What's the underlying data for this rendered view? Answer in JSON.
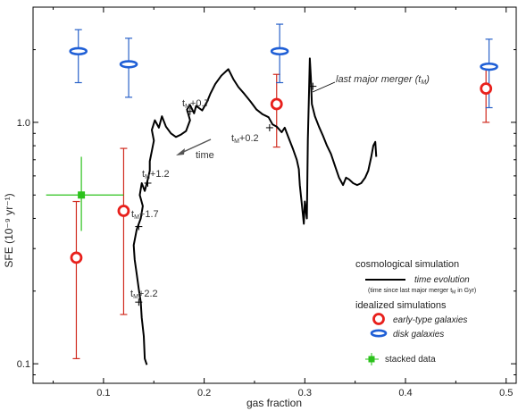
{
  "chart_data": {
    "type": "scatter",
    "xlabel": "gas fraction",
    "ylabel": "SFE (10⁻⁹ yr⁻¹)",
    "xlim": [
      0.03,
      0.51
    ],
    "ylim": [
      0.083,
      3.0
    ],
    "yscale": "log",
    "xticks": [
      0.1,
      0.2,
      0.3,
      0.4,
      0.5
    ],
    "xtick_labels": [
      "0.1",
      "0.2",
      "0.3",
      "0.4",
      "0.5"
    ],
    "yticks": [
      0.1,
      1.0
    ],
    "ytick_labels": [
      "0.1",
      "1.0"
    ],
    "colors": {
      "early": "#e8201c",
      "disk": "#1f5fd6",
      "stacked": "#2bc21b",
      "line": "#000000",
      "errbar_early": "#d02a1e",
      "errbar_disk": "#2a62c9"
    },
    "series": [
      {
        "name": "early-type galaxies",
        "marker": "circle",
        "points": [
          {
            "x": 0.073,
            "y": 0.275,
            "ylo": 0.105,
            "yhi": 0.47
          },
          {
            "x": 0.12,
            "y": 0.43,
            "ylo": 0.16,
            "yhi": 0.78
          },
          {
            "x": 0.272,
            "y": 1.19,
            "ylo": 0.79,
            "yhi": 1.58
          },
          {
            "x": 0.48,
            "y": 1.38,
            "ylo": 1.0,
            "yhi": 1.67
          }
        ]
      },
      {
        "name": "disk galaxies",
        "marker": "ellipse",
        "points": [
          {
            "x": 0.075,
            "y": 1.97,
            "ylo": 1.46,
            "yhi": 2.42
          },
          {
            "x": 0.125,
            "y": 1.74,
            "ylo": 1.27,
            "yhi": 2.23
          },
          {
            "x": 0.275,
            "y": 1.97,
            "ylo": 1.46,
            "yhi": 2.55
          },
          {
            "x": 0.483,
            "y": 1.7,
            "ylo": 1.15,
            "yhi": 2.21
          }
        ]
      },
      {
        "name": "stacked data",
        "marker": "square",
        "points": [
          {
            "x": 0.078,
            "y": 0.5,
            "xlo": 0.043,
            "xhi": 0.12,
            "ylo": 0.355,
            "yhi": 0.72
          }
        ]
      }
    ],
    "time_evolution": {
      "name": "time evolution",
      "points": [
        [
          0.143,
          0.099
        ],
        [
          0.141,
          0.105
        ],
        [
          0.14,
          0.13
        ],
        [
          0.138,
          0.155
        ],
        [
          0.137,
          0.18
        ],
        [
          0.135,
          0.205
        ],
        [
          0.133,
          0.235
        ],
        [
          0.131,
          0.27
        ],
        [
          0.13,
          0.31
        ],
        [
          0.133,
          0.36
        ],
        [
          0.137,
          0.4
        ],
        [
          0.139,
          0.45
        ],
        [
          0.136,
          0.5
        ],
        [
          0.138,
          0.56
        ],
        [
          0.141,
          0.52
        ],
        [
          0.144,
          0.58
        ],
        [
          0.146,
          0.63
        ],
        [
          0.146,
          0.69
        ],
        [
          0.148,
          0.76
        ],
        [
          0.15,
          0.84
        ],
        [
          0.148,
          0.93
        ],
        [
          0.151,
          1.02
        ],
        [
          0.155,
          0.95
        ],
        [
          0.158,
          1.06
        ],
        [
          0.162,
          0.96
        ],
        [
          0.167,
          0.9
        ],
        [
          0.172,
          0.87
        ],
        [
          0.177,
          0.89
        ],
        [
          0.182,
          0.92
        ],
        [
          0.186,
          1.02
        ],
        [
          0.183,
          1.13
        ],
        [
          0.186,
          1.18
        ],
        [
          0.19,
          1.09
        ],
        [
          0.192,
          1.17
        ],
        [
          0.198,
          1.12
        ],
        [
          0.203,
          1.22
        ],
        [
          0.206,
          1.31
        ],
        [
          0.211,
          1.44
        ],
        [
          0.217,
          1.56
        ],
        [
          0.224,
          1.66
        ],
        [
          0.229,
          1.51
        ],
        [
          0.234,
          1.4
        ],
        [
          0.24,
          1.31
        ],
        [
          0.246,
          1.22
        ],
        [
          0.252,
          1.13
        ],
        [
          0.258,
          1.08
        ],
        [
          0.264,
          1.05
        ],
        [
          0.268,
          0.98
        ],
        [
          0.272,
          0.96
        ],
        [
          0.277,
          0.91
        ],
        [
          0.28,
          0.95
        ],
        [
          0.284,
          0.86
        ],
        [
          0.288,
          0.78
        ],
        [
          0.292,
          0.7
        ],
        [
          0.294,
          0.64
        ],
        [
          0.295,
          0.55
        ],
        [
          0.297,
          0.46
        ],
        [
          0.299,
          0.38
        ],
        [
          0.3,
          0.47
        ],
        [
          0.302,
          0.4
        ],
        [
          0.303,
          0.85
        ],
        [
          0.304,
          1.24
        ],
        [
          0.305,
          1.84
        ],
        [
          0.306,
          1.53
        ],
        [
          0.307,
          1.19
        ],
        [
          0.31,
          1.06
        ],
        [
          0.314,
          0.96
        ],
        [
          0.318,
          0.88
        ],
        [
          0.322,
          0.8
        ],
        [
          0.326,
          0.74
        ],
        [
          0.33,
          0.66
        ],
        [
          0.334,
          0.59
        ],
        [
          0.338,
          0.55
        ],
        [
          0.341,
          0.59
        ],
        [
          0.344,
          0.58
        ],
        [
          0.348,
          0.56
        ],
        [
          0.352,
          0.55
        ],
        [
          0.356,
          0.56
        ],
        [
          0.36,
          0.59
        ],
        [
          0.363,
          0.63
        ],
        [
          0.366,
          0.72
        ],
        [
          0.368,
          0.8
        ],
        [
          0.37,
          0.83
        ],
        [
          0.371,
          0.72
        ]
      ],
      "markers": [
        {
          "label": "t_M",
          "x": 0.308,
          "y": 1.41
        },
        {
          "label": "t_M+0.2",
          "x": 0.265,
          "y": 0.95
        },
        {
          "label": "t_M+0.7",
          "x": 0.186,
          "y": 1.11
        },
        {
          "label": "t_M+1.2",
          "x": 0.144,
          "y": 0.56
        },
        {
          "label": "t_M+1.7",
          "x": 0.135,
          "y": 0.37
        },
        {
          "label": "t_M+2.2",
          "x": 0.135,
          "y": 0.18
        }
      ]
    },
    "annotations": {
      "time_arrow_label": "time",
      "last_major_merger_text": "last major merger (t",
      "last_major_merger_sub": "M",
      "last_major_merger_close": ")"
    },
    "tm_labels": [
      {
        "base": "t",
        "sub": "M",
        "rest": "+0.7"
      },
      {
        "base": "t",
        "sub": "M",
        "rest": "+0.2"
      },
      {
        "base": "t",
        "sub": "M",
        "rest": "+1.2"
      },
      {
        "base": "t",
        "sub": "M",
        "rest": "+1.7"
      },
      {
        "base": "t",
        "sub": "M",
        "rest": "+2.2"
      }
    ],
    "legend": {
      "placement": "bottom-right",
      "cosmo_heading": "cosmological simulation",
      "time_evolution_label": "time evolution",
      "time_note_pre": "(time since last major merger t",
      "time_note_sub": "M",
      "time_note_post": " in Gyr)",
      "idealized_heading": "idealized simulations",
      "early_label": "early-type galaxies",
      "disk_label": "disk galaxies",
      "stacked_label": "stacked data"
    }
  }
}
